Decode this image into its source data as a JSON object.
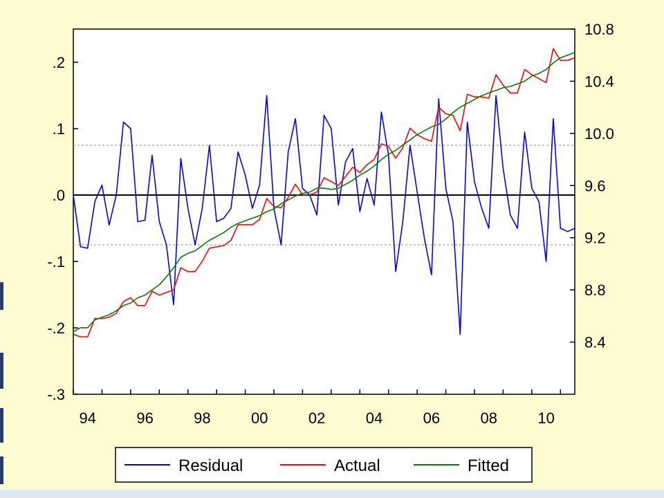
{
  "colors": {
    "background": "#fdfbd0",
    "plot_area": "#ffffff",
    "residual": "#0000ff",
    "actual": "#ff0000",
    "fitted": "#008000",
    "zero_line": "#000000",
    "band_line": "#a0a0a0"
  },
  "chart_data": {
    "type": "line",
    "title": "",
    "x_tick_labels": [
      "94",
      "96",
      "98",
      "00",
      "02",
      "04",
      "06",
      "08",
      "10"
    ],
    "x_range": [
      1994,
      2011.5
    ],
    "x_step": 0.25,
    "left_axis": {
      "range": [
        -0.3,
        0.25
      ],
      "ticks": [
        0.2,
        0.1,
        0.0,
        -0.1,
        -0.2,
        -0.3
      ],
      "tick_labels": [
        ".2",
        ".1",
        ".0",
        "-.1",
        "-.2",
        "-.3"
      ],
      "band": [
        -0.075,
        0.075
      ]
    },
    "right_axis": {
      "range": [
        8.0,
        10.8
      ],
      "ticks": [
        10.8,
        10.4,
        10.0,
        9.6,
        9.2,
        8.8,
        8.4
      ],
      "tick_labels": [
        "10.8",
        "10.4",
        "10.0",
        "9.6",
        "9.2",
        "8.8",
        "8.4"
      ]
    },
    "legend": {
      "placement": "bottom-center",
      "labels": [
        "Residual",
        "Actual",
        "Fitted"
      ]
    },
    "series": [
      {
        "name": "Residual",
        "axis": "left",
        "start": 1994.0,
        "values": [
          0.0,
          -0.078,
          -0.08,
          -0.01,
          0.015,
          -0.045,
          0.0,
          0.11,
          0.1,
          -0.04,
          -0.038,
          0.06,
          -0.04,
          -0.075,
          -0.165,
          0.055,
          -0.02,
          -0.075,
          -0.02,
          0.075,
          -0.04,
          -0.035,
          -0.02,
          0.065,
          0.03,
          -0.02,
          0.015,
          0.15,
          -0.02,
          -0.075,
          0.065,
          0.115,
          0.01,
          0.0,
          -0.03,
          0.12,
          0.1,
          -0.015,
          0.05,
          0.07,
          -0.025,
          0.025,
          -0.015,
          0.125,
          0.06,
          -0.115,
          -0.04,
          0.075,
          0.005,
          -0.065,
          -0.12,
          0.145,
          0.01,
          -0.04,
          -0.21,
          0.11,
          0.02,
          -0.02,
          -0.05,
          0.15,
          0.04,
          -0.03,
          -0.05,
          0.095,
          0.01,
          -0.01,
          -0.1,
          0.115,
          -0.05,
          -0.055,
          -0.05
        ]
      },
      {
        "name": "Actual",
        "axis": "right",
        "start": 1994.0,
        "values": [
          8.46,
          8.44,
          8.44,
          8.58,
          8.58,
          8.59,
          8.62,
          8.71,
          8.74,
          8.68,
          8.68,
          8.79,
          8.76,
          8.78,
          8.8,
          8.97,
          8.94,
          8.94,
          9.02,
          9.12,
          9.13,
          9.14,
          9.18,
          9.3,
          9.3,
          9.3,
          9.34,
          9.5,
          9.44,
          9.43,
          9.51,
          9.61,
          9.53,
          9.53,
          9.55,
          9.66,
          9.63,
          9.6,
          9.67,
          9.74,
          9.7,
          9.76,
          9.8,
          9.92,
          9.9,
          9.81,
          9.89,
          10.04,
          9.99,
          9.96,
          9.94,
          10.2,
          10.15,
          10.14,
          10.02,
          10.3,
          10.28,
          10.28,
          10.27,
          10.45,
          10.37,
          10.31,
          10.31,
          10.49,
          10.45,
          10.42,
          10.39,
          10.65,
          10.56,
          10.56,
          10.58
        ]
      },
      {
        "name": "Fitted",
        "axis": "right",
        "start": 1994.0,
        "values": [
          8.48,
          8.51,
          8.51,
          8.57,
          8.59,
          8.61,
          8.64,
          8.68,
          8.7,
          8.74,
          8.76,
          8.8,
          8.84,
          8.9,
          8.97,
          9.05,
          9.08,
          9.1,
          9.14,
          9.18,
          9.21,
          9.24,
          9.28,
          9.31,
          9.33,
          9.35,
          9.37,
          9.4,
          9.42,
          9.46,
          9.49,
          9.52,
          9.54,
          9.55,
          9.58,
          9.58,
          9.57,
          9.58,
          9.61,
          9.64,
          9.68,
          9.71,
          9.75,
          9.8,
          9.84,
          9.87,
          9.91,
          9.95,
          9.99,
          10.02,
          10.05,
          10.07,
          10.11,
          10.16,
          10.2,
          10.23,
          10.26,
          10.29,
          10.31,
          10.33,
          10.35,
          10.36,
          10.38,
          10.4,
          10.44,
          10.46,
          10.49,
          10.54,
          10.58,
          10.6,
          10.62
        ]
      }
    ]
  }
}
